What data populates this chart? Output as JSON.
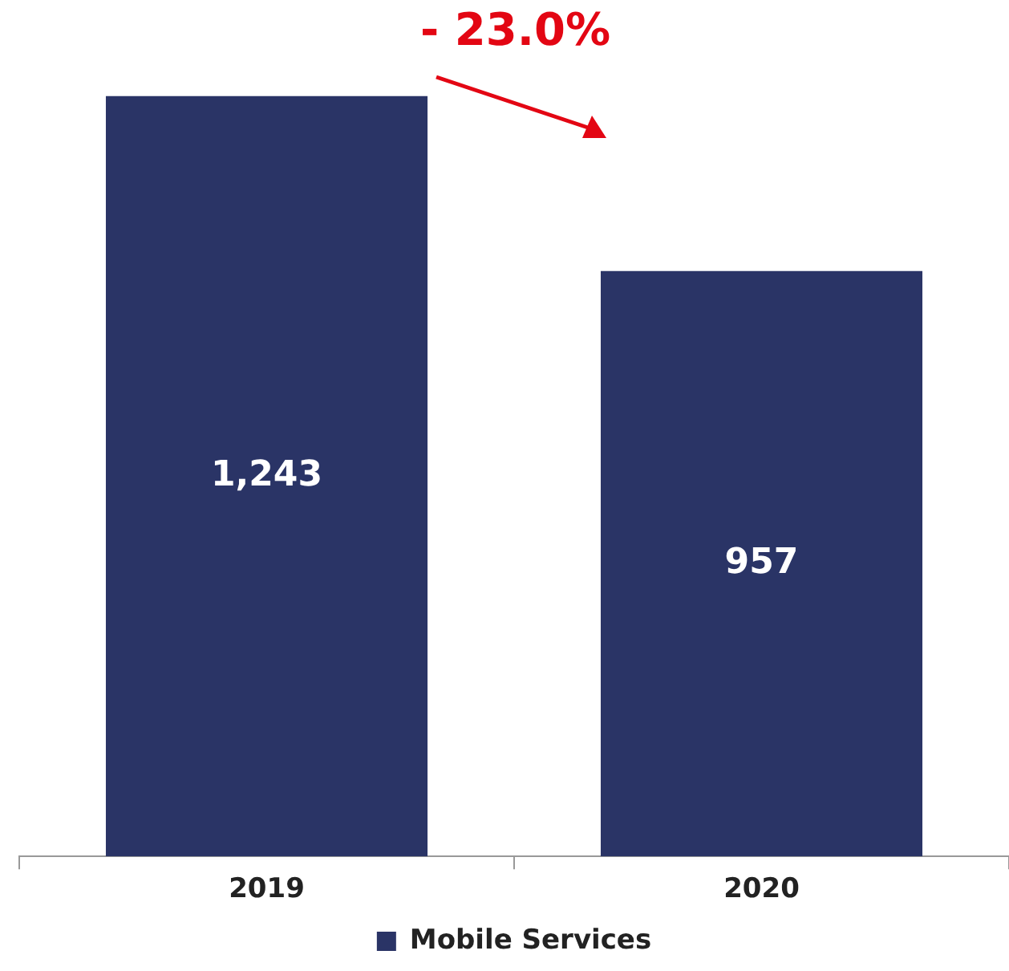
{
  "chart_data": {
    "type": "bar",
    "categories": [
      "2019",
      "2020"
    ],
    "series": [
      {
        "name": "Mobile Services",
        "color": "#2a3466",
        "values": [
          1243,
          957
        ],
        "value_labels": [
          "1,243",
          "957"
        ]
      }
    ],
    "legend": "bottom",
    "grid": false,
    "annotations": [
      "- 23.0%"
    ]
  }
}
